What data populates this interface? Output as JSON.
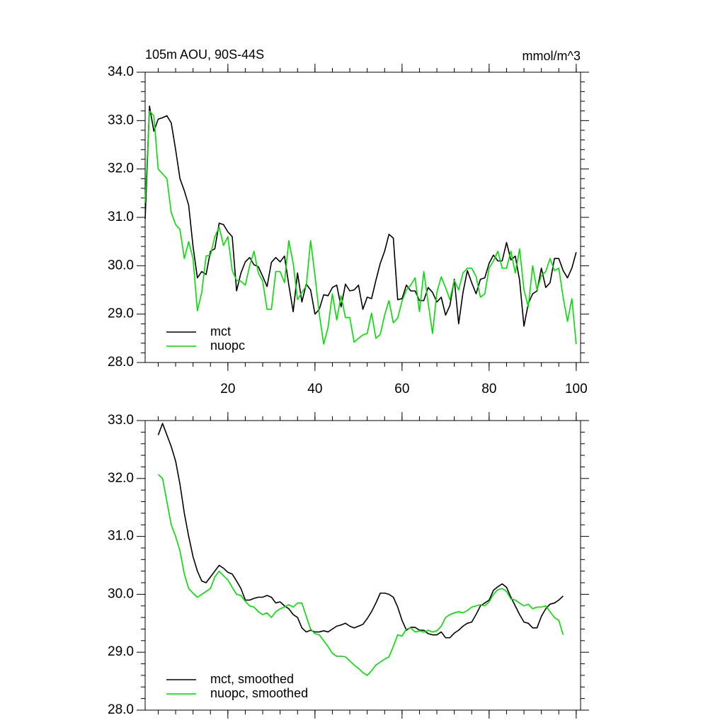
{
  "chart_data": [
    {
      "type": "line",
      "title": "105m AOU, 90S-44S",
      "right_title": "mmol/m^3",
      "x": [
        1,
        2,
        3,
        4,
        5,
        6,
        7,
        8,
        9,
        10,
        11,
        12,
        13,
        14,
        15,
        16,
        17,
        18,
        19,
        20,
        21,
        22,
        23,
        24,
        25,
        26,
        27,
        28,
        29,
        30,
        31,
        32,
        33,
        34,
        35,
        36,
        37,
        38,
        39,
        40,
        41,
        42,
        43,
        44,
        45,
        46,
        47,
        48,
        49,
        50,
        51,
        52,
        53,
        54,
        55,
        56,
        57,
        58,
        59,
        60,
        61,
        62,
        63,
        64,
        65,
        66,
        67,
        68,
        69,
        70,
        71,
        72,
        73,
        74,
        75,
        76,
        77,
        78,
        79,
        80,
        81,
        82,
        83,
        84,
        85,
        86,
        87,
        88,
        89,
        90,
        91,
        92,
        93,
        94,
        95,
        96,
        97,
        98,
        99,
        100
      ],
      "series": [
        {
          "name": "mct",
          "color": "#000000",
          "values": [
            30.97,
            33.3,
            32.78,
            33.03,
            33.06,
            33.1,
            32.95,
            32.4,
            31.8,
            31.55,
            31.25,
            30.4,
            29.75,
            29.88,
            29.82,
            30.3,
            30.35,
            30.88,
            30.85,
            30.7,
            30.6,
            29.48,
            29.85,
            30.08,
            30.17,
            30.02,
            29.98,
            29.78,
            29.57,
            30.07,
            30.17,
            30.08,
            30.2,
            29.6,
            29.05,
            29.85,
            29.25,
            29.62,
            29.5,
            29.0,
            29.1,
            29.4,
            29.38,
            29.55,
            29.6,
            29.15,
            29.62,
            29.48,
            29.5,
            29.6,
            29.1,
            29.35,
            29.32,
            29.7,
            30.05,
            30.3,
            30.65,
            30.57,
            29.3,
            29.32,
            29.6,
            29.48,
            29.48,
            29.28,
            29.28,
            29.55,
            29.45,
            29.25,
            29.35,
            28.98,
            29.18,
            29.72,
            28.8,
            29.45,
            29.9,
            29.65,
            29.42,
            29.72,
            29.75,
            30.05,
            30.22,
            30.1,
            30.1,
            30.48,
            30.12,
            30.2,
            29.7,
            28.75,
            29.22,
            29.42,
            29.48,
            29.95,
            29.55,
            29.65,
            30.15,
            30.15,
            29.9,
            29.75,
            29.95,
            30.28
          ]
        },
        {
          "name": "nuopc",
          "color": "#00dd00",
          "values": [
            31.3,
            33.2,
            33.1,
            32.0,
            31.9,
            31.8,
            31.1,
            30.85,
            30.75,
            30.15,
            30.5,
            30.15,
            29.07,
            29.45,
            30.2,
            30.22,
            30.6,
            30.8,
            30.42,
            30.6,
            29.9,
            29.7,
            29.68,
            29.6,
            30.0,
            30.3,
            29.85,
            29.68,
            29.1,
            29.1,
            29.88,
            29.88,
            29.65,
            30.52,
            30.05,
            29.3,
            29.45,
            29.58,
            30.52,
            29.8,
            29.0,
            28.38,
            28.72,
            29.42,
            28.88,
            29.38,
            28.93,
            28.93,
            28.42,
            28.5,
            28.57,
            28.6,
            29.02,
            28.5,
            28.58,
            28.98,
            29.28,
            28.82,
            28.92,
            29.27,
            29.5,
            29.6,
            29.75,
            29.05,
            29.88,
            29.23,
            28.6,
            29.45,
            29.77,
            29.55,
            29.3,
            29.7,
            29.5,
            29.85,
            29.95,
            29.95,
            29.78,
            29.35,
            29.42,
            29.95,
            30.1,
            30.3,
            29.95,
            29.95,
            30.3,
            29.85,
            30.35,
            29.5,
            29.15,
            30.0,
            29.5,
            29.8,
            29.88,
            30.15,
            29.9,
            29.95,
            29.35,
            28.85,
            29.32,
            28.38
          ]
        }
      ],
      "xlim": [
        1,
        101
      ],
      "xticks": [
        20,
        40,
        60,
        80,
        100
      ],
      "xtick_labels": true,
      "ylim": [
        28,
        34
      ],
      "yticks": [
        {
          "value": 28,
          "label": "28.0"
        },
        {
          "value": 29,
          "label": "29.0"
        },
        {
          "value": 30,
          "label": "30.0"
        },
        {
          "value": 31,
          "label": "31.0"
        },
        {
          "value": 32,
          "label": "32.0"
        },
        {
          "value": 33,
          "label": "33.0"
        },
        {
          "value": 34,
          "label": "34.0"
        }
      ],
      "legend": "lower left",
      "grid": false
    },
    {
      "type": "line",
      "x": [
        4,
        5,
        6,
        7,
        8,
        9,
        10,
        11,
        12,
        13,
        14,
        15,
        16,
        17,
        18,
        19,
        20,
        21,
        22,
        23,
        24,
        25,
        26,
        27,
        28,
        29,
        30,
        31,
        32,
        33,
        34,
        35,
        36,
        37,
        38,
        39,
        40,
        41,
        42,
        43,
        44,
        45,
        46,
        47,
        48,
        49,
        50,
        51,
        52,
        53,
        54,
        55,
        56,
        57,
        58,
        59,
        60,
        61,
        62,
        63,
        64,
        65,
        66,
        67,
        68,
        69,
        70,
        71,
        72,
        73,
        74,
        75,
        76,
        77,
        78,
        79,
        80,
        81,
        82,
        83,
        84,
        85,
        86,
        87,
        88,
        89,
        90,
        91,
        92,
        93,
        94,
        95,
        96,
        97
      ],
      "series": [
        {
          "name": "mct, smoothed",
          "color": "#000000",
          "values": [
            32.75,
            32.95,
            32.75,
            32.55,
            32.3,
            31.9,
            31.4,
            31.0,
            30.65,
            30.4,
            30.23,
            30.2,
            30.3,
            30.4,
            30.5,
            30.45,
            30.38,
            30.35,
            30.23,
            30.1,
            29.9,
            29.9,
            29.93,
            29.95,
            29.95,
            29.98,
            29.95,
            29.85,
            29.87,
            29.8,
            29.75,
            29.65,
            29.6,
            29.42,
            29.35,
            29.38,
            29.35,
            29.35,
            29.37,
            29.35,
            29.4,
            29.45,
            29.47,
            29.5,
            29.45,
            29.42,
            29.45,
            29.48,
            29.58,
            29.7,
            29.85,
            30.02,
            30.02,
            30.0,
            29.95,
            29.78,
            29.55,
            29.38,
            29.43,
            29.43,
            29.38,
            29.38,
            29.32,
            29.3,
            29.3,
            29.35,
            29.25,
            29.25,
            29.33,
            29.38,
            29.45,
            29.5,
            29.52,
            29.65,
            29.8,
            29.85,
            29.9,
            30.07,
            30.13,
            30.18,
            30.12,
            29.95,
            29.8,
            29.65,
            29.52,
            29.5,
            29.42,
            29.42,
            29.62,
            29.75,
            29.83,
            29.85,
            29.9,
            29.97
          ]
        },
        {
          "name": "nuopc, smoothed",
          "color": "#00dd00",
          "values": [
            32.07,
            32.0,
            31.6,
            31.2,
            31.0,
            30.75,
            30.35,
            30.1,
            30.02,
            29.95,
            30.0,
            30.05,
            30.1,
            30.3,
            30.4,
            30.32,
            30.25,
            30.12,
            30.0,
            29.98,
            29.88,
            29.8,
            29.78,
            29.7,
            29.65,
            29.68,
            29.6,
            29.7,
            29.75,
            29.78,
            29.82,
            29.78,
            29.85,
            29.85,
            29.62,
            29.4,
            29.32,
            29.3,
            29.2,
            29.1,
            28.98,
            28.93,
            28.93,
            28.92,
            28.85,
            28.78,
            28.72,
            28.65,
            28.6,
            28.68,
            28.78,
            28.83,
            28.88,
            28.92,
            29.1,
            29.3,
            29.28,
            29.4,
            29.42,
            29.35,
            29.37,
            29.35,
            29.38,
            29.35,
            29.37,
            29.45,
            29.6,
            29.65,
            29.68,
            29.7,
            29.68,
            29.72,
            29.78,
            29.8,
            29.82,
            29.8,
            29.87,
            30.0,
            30.08,
            30.1,
            30.05,
            29.92,
            29.9,
            29.85,
            29.8,
            29.83,
            29.75,
            29.78,
            29.78,
            29.8,
            29.7,
            29.6,
            29.55,
            29.3
          ]
        }
      ],
      "xlim": [
        1,
        101
      ],
      "xticks": [
        20,
        40,
        60,
        80,
        100
      ],
      "xtick_labels": false,
      "ylim": [
        28,
        33
      ],
      "yticks": [
        {
          "value": 28,
          "label": "28.0"
        },
        {
          "value": 29,
          "label": "29.0"
        },
        {
          "value": 30,
          "label": "30.0"
        },
        {
          "value": 31,
          "label": "31.0"
        },
        {
          "value": 32,
          "label": "32.0"
        },
        {
          "value": 33,
          "label": "33.0"
        }
      ],
      "legend": "lower left",
      "grid": false
    }
  ]
}
